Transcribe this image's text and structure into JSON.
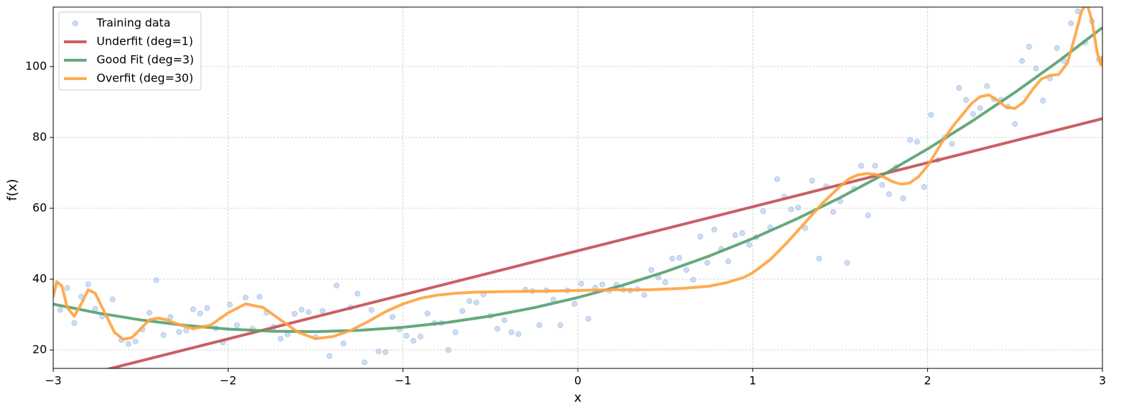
{
  "chart_data": {
    "type": "line",
    "xlabel": "x",
    "ylabel": "f(x)",
    "xlim": [
      -3,
      3
    ],
    "ylim": [
      14.8,
      116.8
    ],
    "xticks": [
      {
        "value": -3,
        "label": "−3"
      },
      {
        "value": -2,
        "label": "−2"
      },
      {
        "value": -1,
        "label": "−1"
      },
      0,
      1,
      2,
      3
    ],
    "yticks": [
      20,
      40,
      60,
      80,
      100
    ],
    "grid": true,
    "legend": "upper left",
    "series": [
      {
        "name": "Training data",
        "type": "scatter",
        "color": "#aec7e8",
        "x": [
          -2.96,
          -2.92,
          -2.88,
          -2.84,
          -2.8,
          -2.76,
          -2.72,
          -2.66,
          -2.61,
          -2.57,
          -2.53,
          -2.49,
          -2.45,
          -2.41,
          -2.37,
          -2.33,
          -2.28,
          -2.24,
          -2.2,
          -2.16,
          -2.12,
          -2.07,
          -2.03,
          -1.99,
          -1.95,
          -1.9,
          -1.86,
          -1.82,
          -1.78,
          -1.74,
          -1.7,
          -1.66,
          -1.62,
          -1.58,
          -1.54,
          -1.5,
          -1.46,
          -1.42,
          -1.38,
          -1.34,
          -1.3,
          -1.26,
          -1.22,
          -1.18,
          -1.14,
          -1.1,
          -1.06,
          -1.02,
          -0.98,
          -0.94,
          -0.9,
          -0.86,
          -0.82,
          -0.78,
          -0.74,
          -0.7,
          -0.66,
          -0.62,
          -0.58,
          -0.54,
          -0.5,
          -0.46,
          -0.42,
          -0.38,
          -0.34,
          -0.3,
          -0.26,
          -0.22,
          -0.18,
          -0.14,
          -0.1,
          -0.06,
          -0.02,
          0.02,
          0.06,
          0.1,
          0.14,
          0.18,
          0.22,
          0.26,
          0.3,
          0.34,
          0.38,
          0.42,
          0.46,
          0.5,
          0.54,
          0.58,
          0.62,
          0.66,
          0.7,
          0.74,
          0.78,
          0.82,
          0.86,
          0.9,
          0.94,
          0.98,
          1.02,
          1.06,
          1.1,
          1.14,
          1.18,
          1.22,
          1.26,
          1.3,
          1.34,
          1.38,
          1.42,
          1.46,
          1.5,
          1.54,
          1.58,
          1.62,
          1.66,
          1.7,
          1.74,
          1.78,
          1.82,
          1.86,
          1.9,
          1.94,
          1.98,
          2.02,
          2.06,
          2.1,
          2.14,
          2.18,
          2.22,
          2.26,
          2.3,
          2.34,
          2.38,
          2.42,
          2.46,
          2.5,
          2.54,
          2.58,
          2.62,
          2.66,
          2.7,
          2.74,
          2.78,
          2.82,
          2.86,
          2.9,
          2.94,
          2.98
        ],
        "values": [
          31.3,
          37.5,
          27.6,
          35,
          38.5,
          31.6,
          29.5,
          34.3,
          22.8,
          21.7,
          22.4,
          25.8,
          30.5,
          39.7,
          24.2,
          29.3,
          25.1,
          25.5,
          31.5,
          30.3,
          31.8,
          26.1,
          22.1,
          32.8,
          27,
          34.8,
          26,
          35,
          30.5,
          26.5,
          23.2,
          24.4,
          30.2,
          31.4,
          30.7,
          23.6,
          31,
          18.3,
          38.2,
          21.8,
          32,
          35.9,
          16.5,
          31.3,
          19.6,
          19.4,
          29.3,
          25.8,
          24,
          22.6,
          23.8,
          30.3,
          27.6,
          27.6,
          20,
          25,
          31,
          33.8,
          33.4,
          35.7,
          29.6,
          26,
          28.4,
          25,
          24.5,
          37,
          36.6,
          27,
          36.8,
          34.2,
          27,
          36.8,
          33,
          38.7,
          28.8,
          37.6,
          38.5,
          36.8,
          38.4,
          37,
          36.8,
          37.2,
          35.5,
          42.6,
          40.5,
          39.1,
          45.8,
          46,
          42.6,
          39.8,
          52,
          44.6,
          54,
          48.5,
          45,
          52.4,
          53,
          49.7,
          51.8,
          59.2,
          54.6,
          68.2,
          63.3,
          59.7,
          60.2,
          54.4,
          67.8,
          45.8,
          66.2,
          59,
          62,
          44.6,
          65.5,
          72,
          58,
          72,
          66.6,
          64,
          71.6,
          62.8,
          79.3,
          78.8,
          66,
          86.4,
          73.6,
          80,
          78.2,
          94,
          90.6,
          86.6,
          88.3,
          94.5,
          90.8,
          90.6,
          88.7,
          83.8,
          101.6,
          105.6,
          99.5,
          90.4,
          96.7,
          105.2,
          101.6,
          112.2,
          115.6,
          106.8,
          112.8,
          102
        ]
      },
      {
        "name": "Underfit (deg=1)",
        "color": "#c44e52",
        "x": [
          -3,
          3
        ],
        "values": [
          10.7,
          85.3
        ]
      },
      {
        "name": "Good Fit (deg=3)",
        "color": "#55a06e",
        "x": [
          -3,
          -2.75,
          -2.5,
          -2.25,
          -2,
          -1.75,
          -1.5,
          -1.25,
          -1,
          -0.75,
          -0.5,
          -0.25,
          0,
          0.25,
          0.5,
          0.75,
          1,
          1.25,
          1.5,
          1.75,
          2,
          2.25,
          2.5,
          2.75,
          3
        ],
        "values": [
          32.94,
          30.49,
          28.49,
          26.97,
          25.9,
          25.31,
          25.18,
          25.54,
          26.4,
          27.74,
          29.58,
          31.94,
          34.8,
          38.18,
          42.08,
          46.5,
          51.46,
          56.96,
          63,
          69.59,
          76.74,
          84.45,
          92.73,
          101.57,
          111.0
        ]
      },
      {
        "name": "Overfit (deg=30)",
        "color": "#ffa23e",
        "x": [
          -3,
          -2.98,
          -2.95,
          -2.92,
          -2.88,
          -2.84,
          -2.8,
          -2.76,
          -2.7,
          -2.65,
          -2.6,
          -2.55,
          -2.5,
          -2.45,
          -2.4,
          -2.35,
          -2.3,
          -2.2,
          -2.1,
          -2,
          -1.9,
          -1.8,
          -1.7,
          -1.6,
          -1.5,
          -1.4,
          -1.3,
          -1.2,
          -1.1,
          -1,
          -0.9,
          -0.8,
          -0.7,
          -0.6,
          -0.4,
          -0.2,
          0,
          0.2,
          0.4,
          0.6,
          0.75,
          0.85,
          0.95,
          1,
          1.1,
          1.2,
          1.3,
          1.4,
          1.5,
          1.55,
          1.6,
          1.65,
          1.7,
          1.75,
          1.8,
          1.85,
          1.9,
          1.95,
          2,
          2.05,
          2.1,
          2.15,
          2.2,
          2.25,
          2.3,
          2.35,
          2.4,
          2.45,
          2.5,
          2.55,
          2.6,
          2.65,
          2.7,
          2.75,
          2.8,
          2.84,
          2.88,
          2.91,
          2.94,
          2.97,
          2.99,
          3
        ],
        "values": [
          35,
          39.3,
          38,
          32,
          29.5,
          33,
          37,
          36,
          30,
          25,
          23,
          23.5,
          26,
          28.5,
          29,
          28.5,
          27.5,
          26,
          27,
          30.5,
          33,
          32,
          28.5,
          25,
          23.2,
          23.8,
          25.5,
          28,
          30.8,
          33,
          34.6,
          35.5,
          36,
          36.3,
          36.5,
          36.6,
          36.8,
          37,
          37,
          37.4,
          38,
          39,
          40.5,
          41.8,
          45.5,
          50.5,
          56,
          61.5,
          66.2,
          68.3,
          69.4,
          69.8,
          69.6,
          68.8,
          67.5,
          66.8,
          67.2,
          69,
          72,
          76,
          80,
          83.5,
          86.5,
          89.5,
          91.5,
          92,
          90.5,
          88.5,
          88.2,
          90,
          93.5,
          96.5,
          97.5,
          97.8,
          101,
          108,
          115.5,
          118,
          113,
          104,
          100.5,
          103
        ]
      }
    ]
  }
}
